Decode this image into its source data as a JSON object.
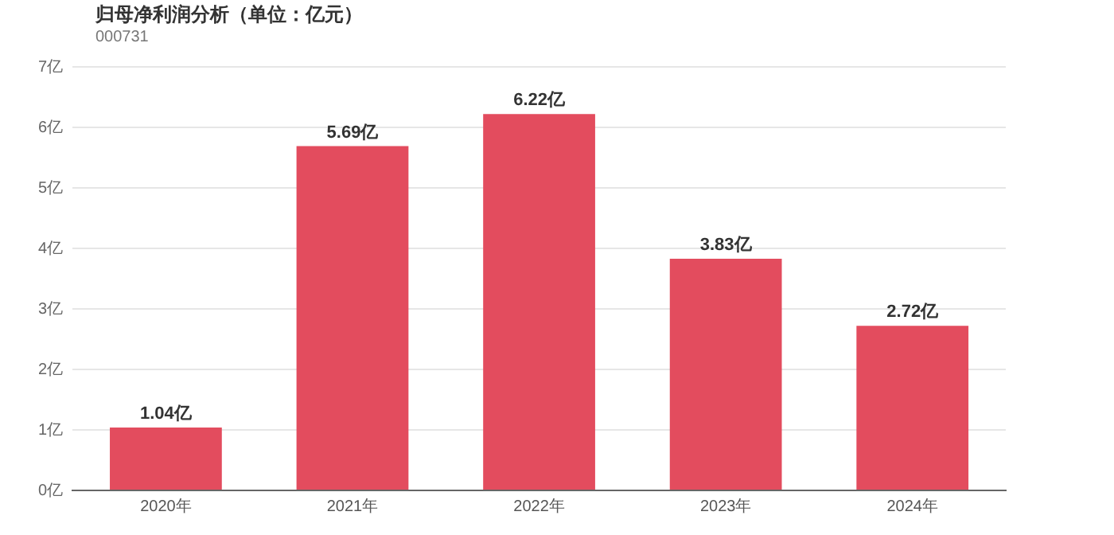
{
  "chart_data": {
    "type": "bar",
    "title": "归母净利润分析（单位：亿元）",
    "subtitle": "000731",
    "categories": [
      "2020年",
      "2021年",
      "2022年",
      "2023年",
      "2024年"
    ],
    "values": [
      1.04,
      5.69,
      6.22,
      3.83,
      2.72
    ],
    "color": "#e34c5e",
    "value_labels": [
      "1.04亿",
      "5.69亿",
      "6.22亿",
      "3.83亿",
      "2.72亿"
    ],
    "ylim": [
      0,
      7
    ],
    "yticks": [
      {
        "value": 0,
        "label": "0亿"
      },
      {
        "value": 1,
        "label": "1亿"
      },
      {
        "value": 2,
        "label": "2亿"
      },
      {
        "value": 3,
        "label": "3亿"
      },
      {
        "value": 4,
        "label": "4亿"
      },
      {
        "value": 5,
        "label": "5亿"
      },
      {
        "value": 6,
        "label": "6亿"
      },
      {
        "value": 7,
        "label": "7亿"
      }
    ],
    "grid": "y",
    "legend": false
  }
}
